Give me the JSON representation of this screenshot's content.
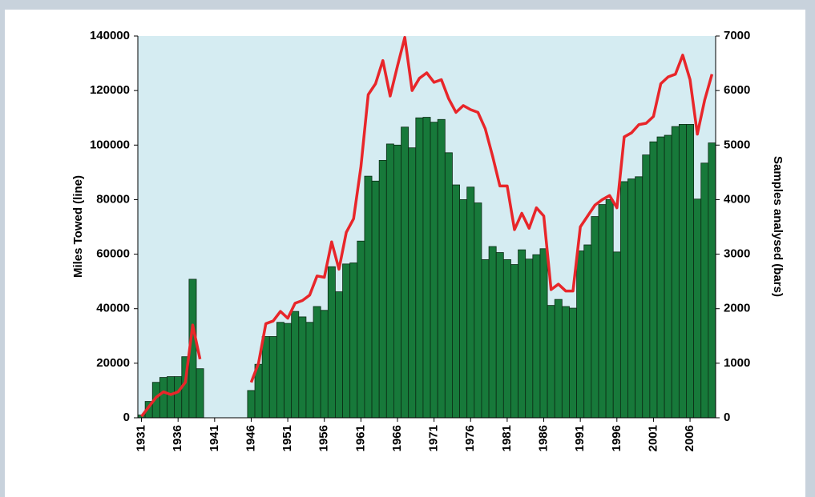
{
  "chart_data": {
    "type": "bar",
    "y_label": "Miles Towed (line)",
    "y2_label": "Samples analysed (bars)",
    "x": [
      1931,
      1932,
      1933,
      1934,
      1935,
      1936,
      1937,
      1938,
      1939,
      1940,
      1941,
      1942,
      1943,
      1944,
      1945,
      1946,
      1947,
      1948,
      1949,
      1950,
      1951,
      1952,
      1953,
      1954,
      1955,
      1956,
      1957,
      1958,
      1959,
      1960,
      1961,
      1962,
      1963,
      1964,
      1965,
      1966,
      1967,
      1968,
      1969,
      1970,
      1971,
      1972,
      1973,
      1974,
      1975,
      1976,
      1977,
      1978,
      1979,
      1980,
      1981,
      1982,
      1983,
      1984,
      1985,
      1986,
      1987,
      1988,
      1989,
      1990,
      1991,
      1992,
      1993,
      1994,
      1995,
      1996,
      1997,
      1998,
      1999,
      2000,
      2001,
      2002,
      2003,
      2004,
      2005,
      2006,
      2007,
      2008,
      2009
    ],
    "xlim": [
      1930.5,
      2009.5
    ],
    "xticks": [
      1931,
      1936,
      1941,
      1946,
      1951,
      1956,
      1961,
      1966,
      1971,
      1976,
      1981,
      1986,
      1991,
      1996,
      2001,
      2006
    ],
    "ylim": [
      0,
      140000
    ],
    "yticks": [
      0,
      20000,
      40000,
      60000,
      80000,
      100000,
      120000,
      140000
    ],
    "y2lim": [
      0,
      7000
    ],
    "y2ticks": [
      0,
      1000,
      2000,
      3000,
      4000,
      5000,
      6000,
      7000
    ],
    "series": [
      {
        "name": "Samples analysed",
        "type": "bar",
        "axis": "y2",
        "color": "#17793a",
        "values": [
          50,
          300,
          650,
          740,
          755,
          755,
          1120,
          2540,
          900,
          null,
          null,
          null,
          null,
          null,
          null,
          500,
          980,
          1490,
          1490,
          1750,
          1730,
          1950,
          1850,
          1750,
          2040,
          1970,
          2770,
          2310,
          2820,
          2840,
          3240,
          4430,
          4340,
          4720,
          5020,
          5000,
          5330,
          4950,
          5500,
          5510,
          5420,
          5470,
          4860,
          4270,
          4000,
          4230,
          3940,
          2900,
          3140,
          3030,
          2900,
          2810,
          3080,
          2910,
          2990,
          3100,
          2060,
          2170,
          2040,
          2010,
          3060,
          3170,
          3690,
          3910,
          4000,
          3040,
          4330,
          4380,
          4420,
          4820,
          5060,
          5150,
          5180,
          5340,
          5380,
          5380,
          4010,
          4670,
          5040
        ]
      },
      {
        "name": "Miles Towed",
        "type": "line",
        "color": "#e8262a",
        "values": [
          500,
          4000,
          7500,
          9500,
          8500,
          9500,
          13000,
          34000,
          21500,
          null,
          null,
          null,
          null,
          null,
          null,
          13000,
          20000,
          34500,
          35500,
          39000,
          36500,
          42000,
          43000,
          45000,
          52000,
          51500,
          64500,
          54500,
          68000,
          73000,
          92000,
          118500,
          122500,
          131000,
          118000,
          129000,
          139500,
          120000,
          124500,
          126500,
          123000,
          124000,
          117000,
          112000,
          114500,
          113000,
          112000,
          106000,
          96000,
          85000,
          85000,
          69000,
          75000,
          69500,
          77000,
          74000,
          47000,
          49000,
          46500,
          46500,
          70000,
          74000,
          78000,
          80000,
          81500,
          77000,
          103000,
          104500,
          107500,
          108000,
          110500,
          122500,
          125000,
          126000,
          133000,
          124000,
          104000,
          116500,
          126000
        ]
      }
    ]
  }
}
